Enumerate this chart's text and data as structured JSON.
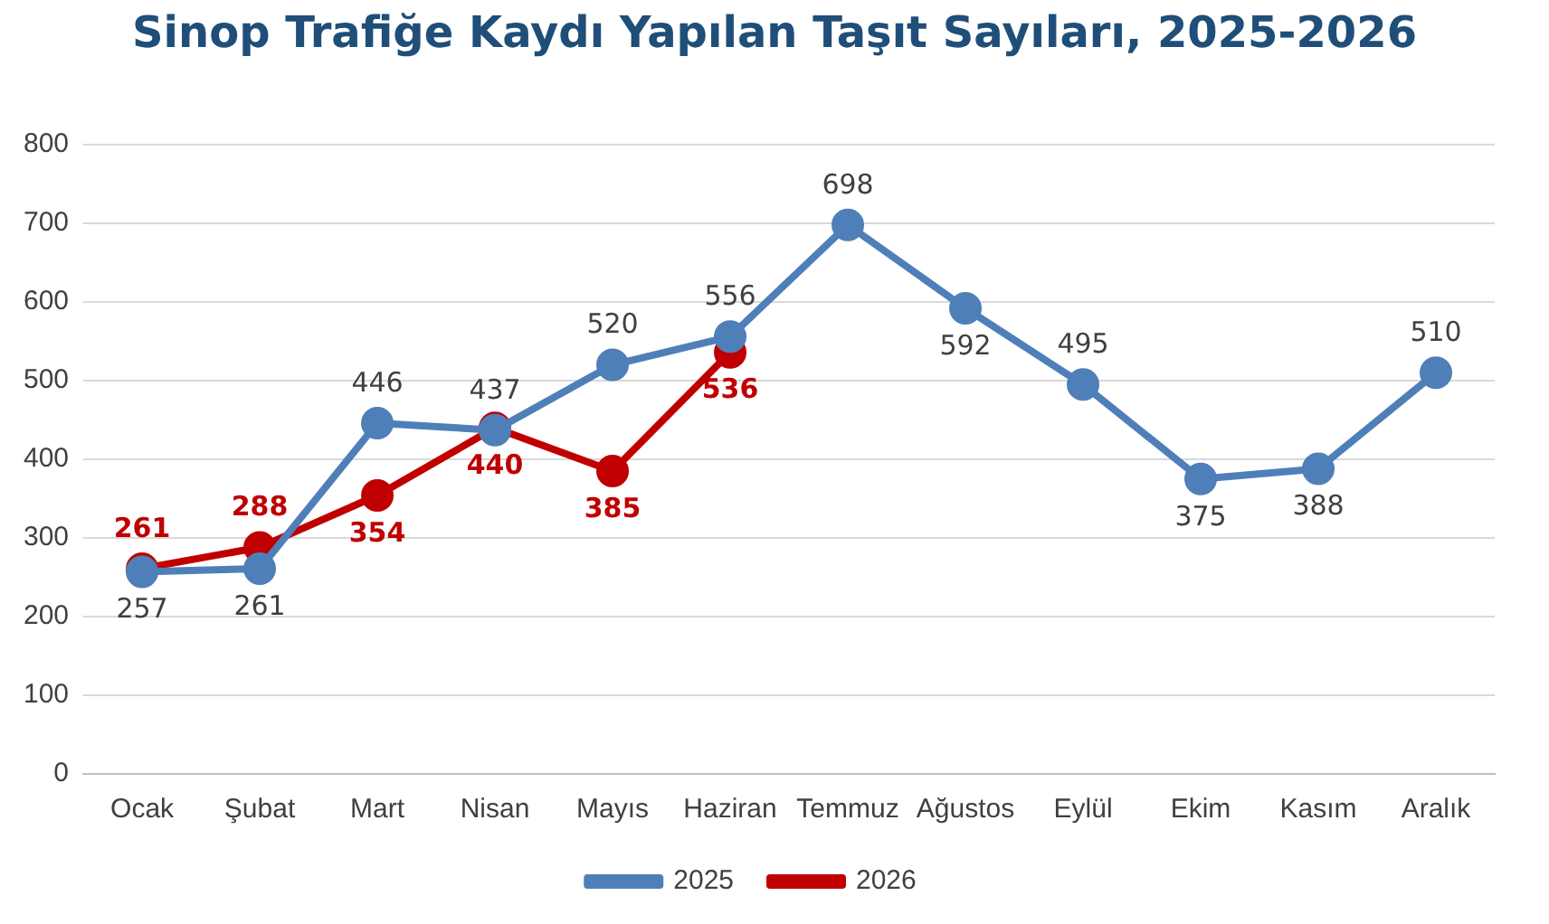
{
  "chart_data": {
    "type": "line",
    "title": "Sinop Trafiğe Kaydı Yapılan Taşıt Sayıları, 2025-2026",
    "categories": [
      "Ocak",
      "Şubat",
      "Mart",
      "Nisan",
      "Mayıs",
      "Haziran",
      "Temmuz",
      "Ağustos",
      "Eylül",
      "Ekim",
      "Kasım",
      "Aralık"
    ],
    "series": [
      {
        "name": "2025",
        "color": "#4f7fb8",
        "values": [
          257,
          261,
          446,
          437,
          520,
          556,
          698,
          592,
          495,
          375,
          388,
          510
        ]
      },
      {
        "name": "2026",
        "color": "#c00000",
        "values": [
          261,
          288,
          354,
          440,
          385,
          536,
          null,
          null,
          null,
          null,
          null,
          null
        ]
      }
    ],
    "ylim": [
      0,
      800
    ],
    "yticks": [
      0,
      100,
      200,
      300,
      400,
      500,
      600,
      700,
      800
    ],
    "grid": "y",
    "legend": "bottom",
    "marker": "circle",
    "line_style": "solid",
    "data_labels": true
  }
}
